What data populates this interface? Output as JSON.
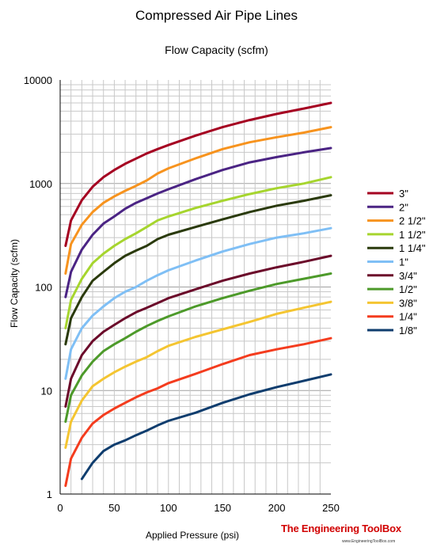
{
  "header": {
    "title": "Compressed Air Pipe Lines",
    "subtitle": "Flow Capacity (scfm)"
  },
  "branding": {
    "name": "The Engineering ToolBox",
    "url": "www.EngineeringToolBox.com"
  },
  "chart_data": {
    "type": "line",
    "title": "Flow Capacity (scfm)",
    "xlabel": "Applied Pressure (psi)",
    "ylabel": "Flow Capacity (scfm)",
    "xlim": [
      0,
      250
    ],
    "ylim": [
      1,
      10000
    ],
    "yscale": "log",
    "grid": true,
    "legend": "right",
    "x_ticks": [
      0,
      50,
      100,
      150,
      200,
      250
    ],
    "y_ticks": [
      1,
      10,
      100,
      1000,
      10000
    ],
    "x_tick_labels": [
      "0",
      "50",
      "100",
      "150",
      "200",
      "250"
    ],
    "y_tick_labels": [
      "1",
      "10",
      "100",
      "1000",
      "10000"
    ],
    "x": [
      5,
      10,
      20,
      30,
      40,
      50,
      60,
      70,
      80,
      90,
      100,
      125,
      150,
      175,
      200,
      225,
      250
    ],
    "series": [
      {
        "name": "3\"",
        "color": "#a50021",
        "values": [
          250,
          440,
          690,
          930,
          1150,
          1350,
          1550,
          1740,
          1950,
          2150,
          2350,
          2900,
          3500,
          4100,
          4700,
          5300,
          6000
        ]
      },
      {
        "name": "2\"",
        "color": "#4b2484",
        "values": [
          80,
          140,
          230,
          320,
          410,
          480,
          570,
          650,
          720,
          800,
          880,
          1100,
          1350,
          1600,
          1800,
          2000,
          2200
        ]
      },
      {
        "name": "2 1/2\"",
        "color": "#f7931e",
        "values": [
          135,
          260,
          400,
          530,
          650,
          750,
          850,
          950,
          1070,
          1250,
          1400,
          1750,
          2150,
          2500,
          2800,
          3100,
          3500
        ]
      },
      {
        "name": "1 1/2\"",
        "color": "#a6d52e",
        "values": [
          40,
          75,
          120,
          170,
          210,
          250,
          290,
          330,
          380,
          440,
          480,
          580,
          680,
          790,
          900,
          1000,
          1150
        ]
      },
      {
        "name": "1 1/4\"",
        "color": "#2a3a0c",
        "values": [
          28,
          50,
          80,
          115,
          140,
          170,
          200,
          225,
          250,
          290,
          320,
          380,
          450,
          530,
          610,
          680,
          770
        ]
      },
      {
        "name": "1\"",
        "color": "#7fbff5",
        "values": [
          13,
          25,
          40,
          53,
          65,
          78,
          90,
          100,
          115,
          130,
          145,
          180,
          220,
          260,
          300,
          330,
          370
        ]
      },
      {
        "name": "3/4\"",
        "color": "#6b0a2a",
        "values": [
          7,
          13,
          22,
          30,
          37,
          43,
          50,
          57,
          63,
          70,
          78,
          95,
          115,
          135,
          155,
          175,
          200
        ]
      },
      {
        "name": "1/2\"",
        "color": "#4d9a2a",
        "values": [
          5,
          9,
          14,
          19,
          24,
          28,
          32,
          37,
          42,
          47,
          52,
          65,
          78,
          92,
          107,
          120,
          135
        ]
      },
      {
        "name": "3/8\"",
        "color": "#f4c531",
        "values": [
          2.8,
          5,
          8,
          11,
          13,
          15,
          17,
          19,
          21,
          24,
          27,
          33,
          39,
          46,
          55,
          63,
          72
        ]
      },
      {
        "name": "1/4\"",
        "color": "#f43c1e",
        "values": [
          1.2,
          2.2,
          3.5,
          4.8,
          5.8,
          6.7,
          7.6,
          8.6,
          9.6,
          10.5,
          11.8,
          14.5,
          18,
          22,
          25,
          28,
          32
        ]
      },
      {
        "name": "1/8\"",
        "color": "#0f3d6e",
        "values": [
          null,
          null,
          1.4,
          2,
          2.6,
          3,
          3.3,
          3.7,
          4.1,
          4.6,
          5.1,
          6.1,
          7.6,
          9.2,
          10.8,
          12.4,
          14.3
        ]
      }
    ]
  }
}
